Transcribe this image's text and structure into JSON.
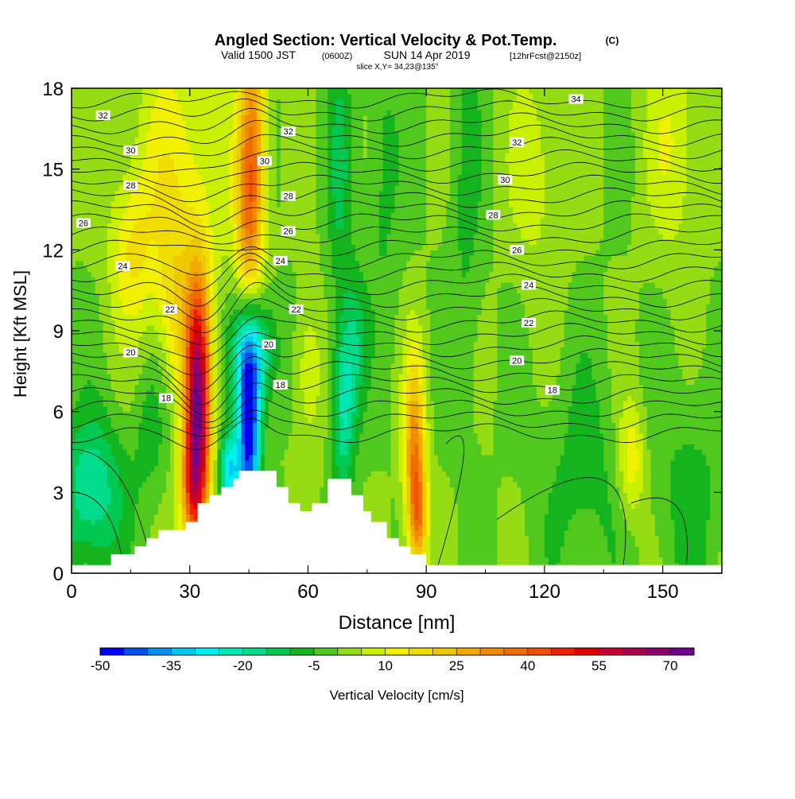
{
  "title": {
    "main": "Angled Section: Vertical Velocity & Pot.Temp.",
    "main_unit": "(C)",
    "valid_prefix": "Valid 1500 JST",
    "valid_z": "(0600Z)",
    "valid_date": "SUN 14 Apr 2019",
    "valid_fcst": "[12hrFcst@2150z]",
    "slice": "slice X,Y= 34,23@135°"
  },
  "chart_data": {
    "type": "heatmap",
    "xlabel": "Distance [nm]",
    "ylabel": "Height [Kft MSL]",
    "xlim": [
      0,
      165
    ],
    "ylim": [
      0,
      18
    ],
    "x_ticks": [
      "0",
      "30",
      "60",
      "90",
      "120",
      "150"
    ],
    "y_ticks": [
      "0",
      "3",
      "6",
      "9",
      "12",
      "15",
      "18"
    ],
    "colorbar": {
      "label": "Vertical Velocity [cm/s]",
      "tick_labels": [
        "-50",
        "-35",
        "-20",
        "-5",
        "10",
        "25",
        "40",
        "55",
        "70"
      ],
      "colors": [
        "#0000f0",
        "#0050f0",
        "#0090f0",
        "#00c8f0",
        "#00f0f0",
        "#00e6b4",
        "#00dc8c",
        "#00c850",
        "#14b41e",
        "#50c81e",
        "#96dc14",
        "#c8f000",
        "#f0f000",
        "#f0dc00",
        "#f0c800",
        "#f0aa00",
        "#f08c00",
        "#f06e00",
        "#f05000",
        "#f01e00",
        "#dc0000",
        "#c80032",
        "#aa0050",
        "#8c006e",
        "#6e008c"
      ]
    },
    "theta_labels": [
      {
        "x": 8,
        "y": 17.0,
        "text": "32"
      },
      {
        "x": 55,
        "y": 16.4,
        "text": "32"
      },
      {
        "x": 128,
        "y": 17.6,
        "text": "34"
      },
      {
        "x": 15,
        "y": 15.7,
        "text": "30"
      },
      {
        "x": 49,
        "y": 15.3,
        "text": "30"
      },
      {
        "x": 113,
        "y": 16.0,
        "text": "32"
      },
      {
        "x": 15,
        "y": 14.4,
        "text": "28"
      },
      {
        "x": 55,
        "y": 14.0,
        "text": "28"
      },
      {
        "x": 110,
        "y": 14.6,
        "text": "30"
      },
      {
        "x": 3,
        "y": 13.0,
        "text": "26"
      },
      {
        "x": 55,
        "y": 12.7,
        "text": "26"
      },
      {
        "x": 107,
        "y": 13.3,
        "text": "28"
      },
      {
        "x": 113,
        "y": 12.0,
        "text": "26"
      },
      {
        "x": 13,
        "y": 11.4,
        "text": "24"
      },
      {
        "x": 53,
        "y": 11.6,
        "text": "24"
      },
      {
        "x": 116,
        "y": 10.7,
        "text": "24"
      },
      {
        "x": 25,
        "y": 9.8,
        "text": "22"
      },
      {
        "x": 57,
        "y": 9.8,
        "text": "22"
      },
      {
        "x": 116,
        "y": 9.3,
        "text": "22"
      },
      {
        "x": 15,
        "y": 8.2,
        "text": "20"
      },
      {
        "x": 50,
        "y": 8.5,
        "text": "20"
      },
      {
        "x": 113,
        "y": 7.9,
        "text": "20"
      },
      {
        "x": 24,
        "y": 6.5,
        "text": "18"
      },
      {
        "x": 53,
        "y": 7.0,
        "text": "18"
      },
      {
        "x": 122,
        "y": 6.8,
        "text": "18"
      }
    ],
    "terrain_profile": [
      {
        "x": 0,
        "y": 0.3
      },
      {
        "x": 10,
        "y": 0.3
      },
      {
        "x": 10,
        "y": 0.7
      },
      {
        "x": 16,
        "y": 0.7
      },
      {
        "x": 16,
        "y": 1.0
      },
      {
        "x": 19,
        "y": 1.0
      },
      {
        "x": 19,
        "y": 1.3
      },
      {
        "x": 22,
        "y": 1.3
      },
      {
        "x": 22,
        "y": 1.6
      },
      {
        "x": 29,
        "y": 1.6
      },
      {
        "x": 29,
        "y": 1.9
      },
      {
        "x": 32,
        "y": 1.9
      },
      {
        "x": 32,
        "y": 2.6
      },
      {
        "x": 35,
        "y": 2.6
      },
      {
        "x": 35,
        "y": 2.9
      },
      {
        "x": 38,
        "y": 2.9
      },
      {
        "x": 38,
        "y": 3.2
      },
      {
        "x": 41,
        "y": 3.2
      },
      {
        "x": 41,
        "y": 3.5
      },
      {
        "x": 42.5,
        "y": 3.5
      },
      {
        "x": 42.5,
        "y": 3.8
      },
      {
        "x": 52,
        "y": 3.8
      },
      {
        "x": 52,
        "y": 3.2
      },
      {
        "x": 55,
        "y": 3.2
      },
      {
        "x": 55,
        "y": 2.6
      },
      {
        "x": 58,
        "y": 2.6
      },
      {
        "x": 58,
        "y": 2.3
      },
      {
        "x": 61,
        "y": 2.3
      },
      {
        "x": 61,
        "y": 2.6
      },
      {
        "x": 65,
        "y": 2.6
      },
      {
        "x": 65,
        "y": 3.5
      },
      {
        "x": 71,
        "y": 3.5
      },
      {
        "x": 71,
        "y": 2.9
      },
      {
        "x": 74,
        "y": 2.9
      },
      {
        "x": 74,
        "y": 2.3
      },
      {
        "x": 76,
        "y": 2.3
      },
      {
        "x": 76,
        "y": 1.9
      },
      {
        "x": 80,
        "y": 1.9
      },
      {
        "x": 80,
        "y": 1.3
      },
      {
        "x": 83,
        "y": 1.3
      },
      {
        "x": 83,
        "y": 1.0
      },
      {
        "x": 86,
        "y": 1.0
      },
      {
        "x": 86,
        "y": 0.7
      },
      {
        "x": 90,
        "y": 0.7
      },
      {
        "x": 90,
        "y": 0.3
      },
      {
        "x": 165,
        "y": 0.3
      }
    ],
    "velocity_features": [
      {
        "x": 32,
        "y": 6.2,
        "sx": 2.3,
        "sy": 3.2,
        "value": 66
      },
      {
        "x": 30.5,
        "y": 3.0,
        "sx": 2.2,
        "sy": 1.5,
        "value": 25
      },
      {
        "x": 26,
        "y": 10.0,
        "sx": 2.5,
        "sy": 2.0,
        "value": 10
      },
      {
        "x": 45,
        "y": 5.2,
        "sx": 2.0,
        "sy": 2.4,
        "value": -48
      },
      {
        "x": 46,
        "y": 8.2,
        "sx": 4.0,
        "sy": 1.5,
        "value": -26
      },
      {
        "x": 40,
        "y": 3.8,
        "sx": 1.8,
        "sy": 1.0,
        "value": -30
      },
      {
        "x": 69,
        "y": 6.2,
        "sx": 2.0,
        "sy": 2.2,
        "value": -21
      },
      {
        "x": 87,
        "y": 4.6,
        "sx": 1.9,
        "sy": 2.4,
        "value": 32
      },
      {
        "x": 88,
        "y": 2.0,
        "sx": 1.6,
        "sy": 1.4,
        "value": 25
      },
      {
        "x": 5,
        "y": 3.0,
        "sx": 6.0,
        "sy": 2.0,
        "value": -20
      },
      {
        "x": 27,
        "y": 14.0,
        "sx": 8.0,
        "sy": 4.5,
        "value": 14
      },
      {
        "x": 46,
        "y": 16.0,
        "sx": 2.5,
        "sy": 3.5,
        "value": 30
      },
      {
        "x": 44.5,
        "y": 13.0,
        "sx": 2.2,
        "sy": 2.5,
        "value": 18
      },
      {
        "x": 68,
        "y": 15.0,
        "sx": 2.2,
        "sy": 4.0,
        "value": -10
      },
      {
        "x": 79,
        "y": 15.0,
        "sx": 3.0,
        "sy": 4.0,
        "value": -7
      },
      {
        "x": 15,
        "y": 12.0,
        "sx": 4.0,
        "sy": 2.0,
        "value": 12
      },
      {
        "x": 142,
        "y": 4.2,
        "sx": 2.5,
        "sy": 1.6,
        "value": 15
      },
      {
        "x": 130,
        "y": 3.5,
        "sx": 8.0,
        "sy": 3.0,
        "value": -7
      },
      {
        "x": 157,
        "y": 3.0,
        "sx": 6.0,
        "sy": 3.0,
        "value": -7
      },
      {
        "x": 100,
        "y": 14.0,
        "sx": 3.0,
        "sy": 6.0,
        "value": -6
      },
      {
        "x": 118,
        "y": 15.0,
        "sx": 5.0,
        "sy": 3.0,
        "value": 8
      },
      {
        "x": 153,
        "y": 16.0,
        "sx": 5.0,
        "sy": 3.0,
        "value": 10
      },
      {
        "x": 72,
        "y": 8.5,
        "sx": 2.0,
        "sy": 2.0,
        "value": -12
      },
      {
        "x": 60,
        "y": 7.5,
        "sx": 2.5,
        "sy": 2.0,
        "value": 10
      },
      {
        "x": 20,
        "y": 5.5,
        "sx": 3.0,
        "sy": 2.0,
        "value": -8
      }
    ]
  }
}
